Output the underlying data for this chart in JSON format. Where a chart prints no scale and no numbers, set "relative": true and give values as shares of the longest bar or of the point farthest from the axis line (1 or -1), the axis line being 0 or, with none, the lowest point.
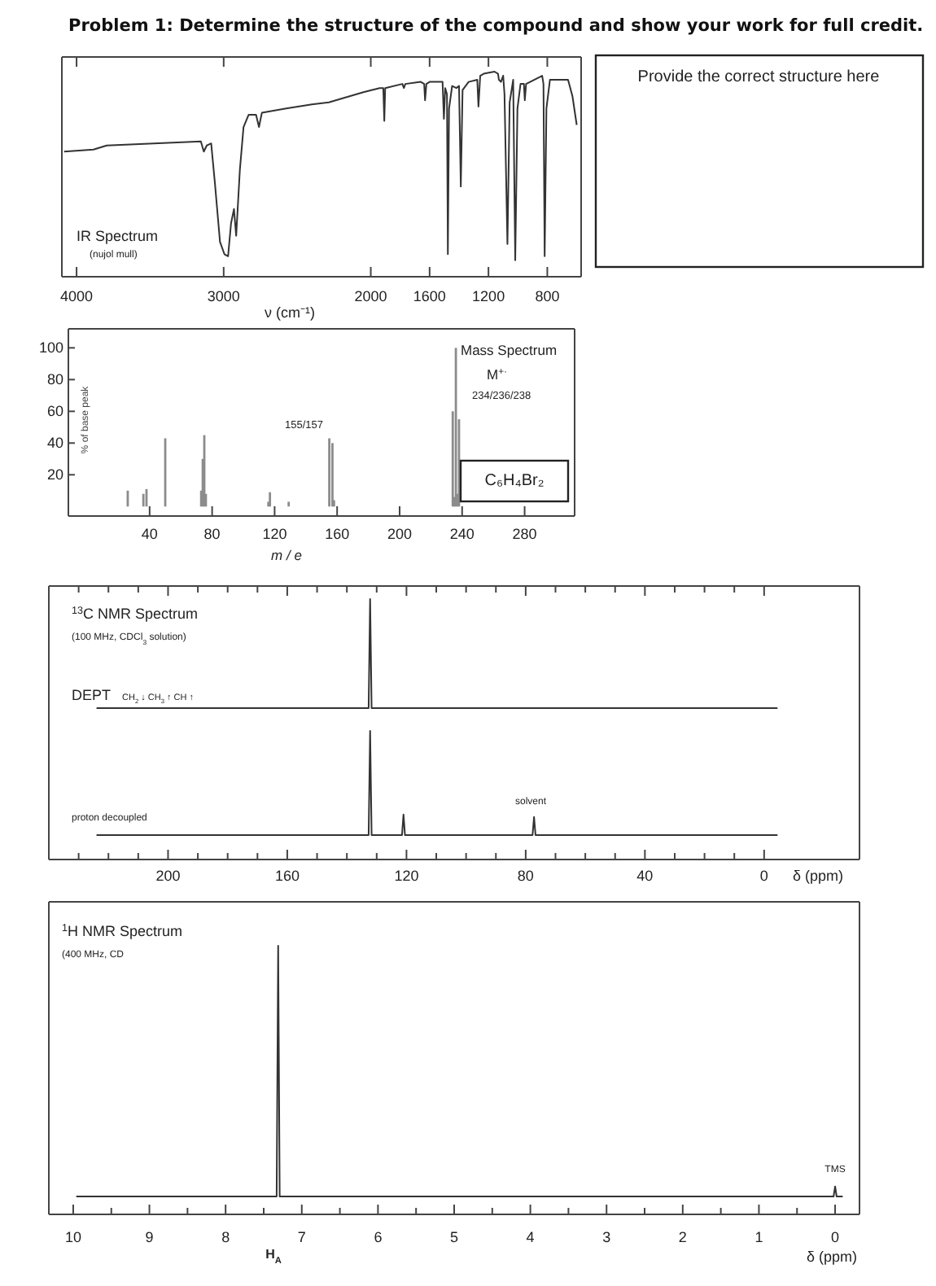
{
  "chart_data": [
    {
      "type": "other",
      "title": "Problem 1: Determine the structure of the compound and show your work for full credit.",
      "annotations": [
        "Provide the correct structure here"
      ]
    },
    {
      "type": "line",
      "relative": true,
      "color": "#333333",
      "xlabel": "ν  (cm⁻¹)",
      "annotations": [
        "IR Spectrum",
        "(nujol mull)"
      ],
      "xlim": [
        4100,
        570
      ],
      "xticks": [
        4000,
        3000,
        2000,
        1600,
        1200,
        800
      ],
      "x": [
        4085,
        3885,
        3795,
        3155,
        3135,
        3115,
        3085,
        3060,
        3025,
        2995,
        2970,
        2950,
        2930,
        2915,
        2890,
        2865,
        2830,
        2780,
        2760,
        2740,
        2575,
        2400,
        2285,
        2050,
        1940,
        1915,
        1908,
        1902,
        1785,
        1775,
        1765,
        1660,
        1637,
        1631,
        1622,
        1600,
        1512,
        1503,
        1494,
        1482,
        1476,
        1468,
        1447,
        1418,
        1400,
        1388,
        1376,
        1335,
        1276,
        1268,
        1256,
        1232,
        1159,
        1135,
        1129,
        1115,
        1100,
        1091,
        1071,
        1056,
        1032,
        1018,
        1003,
        982,
        959,
        953,
        944,
        835,
        826,
        818,
        806,
        782,
        747,
        659,
        629,
        600
      ],
      "values": [
        0.61,
        0.62,
        0.64,
        0.66,
        0.61,
        0.64,
        0.65,
        0.46,
        0.17,
        0.11,
        0.1,
        0.26,
        0.33,
        0.2,
        0.52,
        0.73,
        0.79,
        0.79,
        0.73,
        0.8,
        0.82,
        0.84,
        0.85,
        0.9,
        0.92,
        0.92,
        0.76,
        0.92,
        0.94,
        0.92,
        0.94,
        0.95,
        0.94,
        0.86,
        0.94,
        0.95,
        0.95,
        0.77,
        0.92,
        0.89,
        0.11,
        0.82,
        0.93,
        0.92,
        0.93,
        0.44,
        0.91,
        0.95,
        0.96,
        0.83,
        0.98,
        0.99,
        1,
        0.99,
        0.96,
        0.95,
        0.98,
        0.89,
        0.16,
        0.85,
        0.96,
        0.08,
        0.82,
        0.94,
        0.94,
        0.86,
        0.94,
        0.98,
        0.94,
        0.1,
        0.82,
        0.96,
        0.96,
        0.96,
        0.88,
        0.74
      ]
    },
    {
      "type": "bar",
      "color": "#8c8c8c",
      "xlabel": "m / e",
      "ylabel": "% of base peak",
      "annotations": [
        "Mass Spectrum",
        "M$^{+·}$",
        "234/236/238",
        "155/157",
        "C₆H₄Br₂"
      ],
      "xlim": [
        -12,
        312
      ],
      "ylim": [
        -6,
        112
      ],
      "xticks": [
        40,
        80,
        120,
        160,
        200,
        240,
        280
      ],
      "yticks": [
        20,
        40,
        60,
        80,
        100
      ],
      "x": [
        26,
        36,
        38,
        50,
        73,
        74,
        75,
        76,
        116,
        117,
        129,
        155,
        157,
        158,
        234,
        235,
        236,
        237,
        238
      ],
      "values": [
        10,
        8,
        11,
        43,
        10,
        30,
        45,
        8,
        3,
        9,
        3,
        43,
        40,
        4,
        60,
        6,
        100,
        8,
        55
      ]
    },
    {
      "type": "line",
      "relative": true,
      "color": "#333333",
      "tick_labels": false,
      "annotations": [
        "$^{13}$C NMR Spectrum",
        "(100 MHz, CDCl$_{3}$ solution)",
        "DEPT",
        "CH$_{2}$ ↓ CH$_{3}$ ↑ CH ↑"
      ],
      "xlim": [
        240,
        -32
      ],
      "xticks": [
        {
          "value": 230,
          "label": null
        },
        {
          "value": 220,
          "label": null
        },
        {
          "value": 210,
          "label": null
        },
        200,
        {
          "value": 190,
          "label": null
        },
        {
          "value": 180,
          "label": null
        },
        {
          "value": 170,
          "label": null
        },
        160,
        {
          "value": 150,
          "label": null
        },
        {
          "value": 140,
          "label": null
        },
        {
          "value": 130,
          "label": null
        },
        120,
        {
          "value": 110,
          "label": null
        },
        {
          "value": 100,
          "label": null
        },
        {
          "value": 90,
          "label": null
        },
        80,
        {
          "value": 70,
          "label": null
        },
        {
          "value": 60,
          "label": null
        },
        {
          "value": 50,
          "label": null
        },
        40,
        {
          "value": 30,
          "label": null
        },
        {
          "value": 20,
          "label": null
        },
        {
          "value": 10,
          "label": null
        },
        0
      ],
      "x": [
        224,
        132.7,
        132.2,
        131.7,
        -4.5
      ],
      "values": [
        0,
        0,
        1,
        0,
        0
      ]
    },
    {
      "type": "line",
      "relative": true,
      "color": "#333333",
      "xlabel": "δ (ppm)",
      "annotations": [
        "proton decoupled",
        "solvent"
      ],
      "xlim": [
        240,
        -32
      ],
      "xticks": [
        {
          "value": 230,
          "label": null
        },
        {
          "value": 220,
          "label": null
        },
        {
          "value": 210,
          "label": null
        },
        200,
        {
          "value": 190,
          "label": null
        },
        {
          "value": 180,
          "label": null
        },
        {
          "value": 170,
          "label": null
        },
        160,
        {
          "value": 150,
          "label": null
        },
        {
          "value": 140,
          "label": null
        },
        {
          "value": 130,
          "label": null
        },
        120,
        {
          "value": 110,
          "label": null
        },
        {
          "value": 100,
          "label": null
        },
        {
          "value": 90,
          "label": null
        },
        80,
        {
          "value": 70,
          "label": null
        },
        {
          "value": 60,
          "label": null
        },
        {
          "value": 50,
          "label": null
        },
        40,
        {
          "value": 30,
          "label": null
        },
        {
          "value": 20,
          "label": null
        },
        {
          "value": 10,
          "label": null
        },
        0
      ],
      "x": [
        224,
        132.7,
        132.2,
        131.7,
        121.5,
        121,
        120.5,
        77.7,
        77.2,
        76.7,
        -4.5
      ],
      "values": [
        0.19,
        0.19,
        1,
        0.19,
        0.19,
        0.35,
        0.19,
        0.19,
        0.33,
        0.19,
        0.19
      ]
    },
    {
      "type": "line",
      "relative": true,
      "color": "#333333",
      "xlabel": "δ (ppm)",
      "annotations": [
        "$^{1}$H NMR Spectrum",
        "(400 MHz, CD",
        "TMS",
        "H$_{A}$"
      ],
      "xlim": [
        10.32,
        -0.32
      ],
      "xticks": [
        10,
        {
          "value": 9.5,
          "label": null
        },
        9,
        {
          "value": 8.5,
          "label": null
        },
        8,
        {
          "value": 7.5,
          "label": null
        },
        7,
        {
          "value": 6.5,
          "label": null
        },
        6,
        {
          "value": 5.5,
          "label": null
        },
        5,
        {
          "value": 4.5,
          "label": null
        },
        4,
        {
          "value": 3.5,
          "label": null
        },
        3,
        {
          "value": 2.5,
          "label": null
        },
        2,
        {
          "value": 1.5,
          "label": null
        },
        1,
        {
          "value": 0.5,
          "label": null
        },
        0
      ],
      "x": [
        9.96,
        7.4,
        7.33,
        7.31,
        7.29,
        7.2,
        0.02,
        0,
        -0.02,
        -0.1
      ],
      "values": [
        0,
        0,
        0,
        1,
        0,
        0,
        0,
        0.04,
        0,
        0
      ]
    }
  ]
}
